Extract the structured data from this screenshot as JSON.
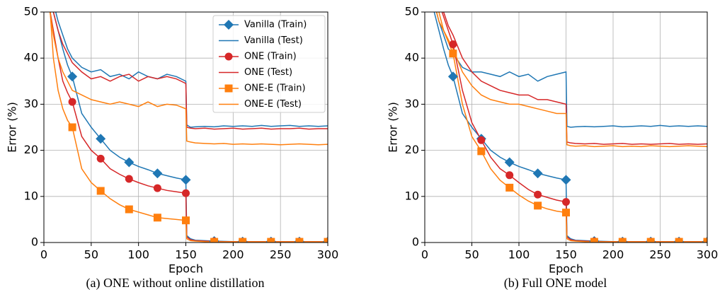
{
  "chart_data": [
    {
      "type": "line",
      "caption": "(a)  ONE without online distillation",
      "xlabel": "Epoch",
      "ylabel": "Error (%)",
      "xlim": [
        0,
        300
      ],
      "ylim": [
        0,
        50
      ],
      "xticks": [
        0,
        50,
        100,
        150,
        200,
        250,
        300
      ],
      "yticks": [
        0,
        10,
        20,
        30,
        40,
        50
      ],
      "grid": true,
      "legend": "upper right",
      "markevery": 30,
      "x": [
        5,
        10,
        15,
        20,
        25,
        30,
        40,
        50,
        60,
        70,
        80,
        90,
        100,
        110,
        120,
        130,
        140,
        150,
        151,
        155,
        160,
        170,
        180,
        190,
        200,
        210,
        220,
        230,
        240,
        250,
        260,
        270,
        280,
        290,
        300
      ],
      "series": [
        {
          "name": "Vanilla (Train)",
          "color": "#1f77b4",
          "marker": "D",
          "values": [
            55,
            50,
            46,
            42,
            38.5,
            36,
            28,
            25,
            22.5,
            20,
            18.5,
            17.4,
            16.5,
            15.8,
            15,
            14.5,
            14,
            13.6,
            1.5,
            0.8,
            0.5,
            0.4,
            0.3,
            0.25,
            0.2,
            0.2,
            0.2,
            0.2,
            0.2,
            0.2,
            0.2,
            0.2,
            0.2,
            0.2,
            0.2
          ]
        },
        {
          "name": "Vanilla (Test)",
          "color": "#1f77b4",
          "values": [
            55,
            52,
            48,
            45,
            42,
            40,
            38,
            37,
            37.5,
            36,
            36.5,
            35.5,
            37,
            36,
            35.5,
            36.5,
            36,
            35,
            25.5,
            25,
            25.1,
            25.2,
            25.1,
            25.3,
            25.2,
            25.3,
            25.2,
            25.4,
            25.2,
            25.3,
            25.4,
            25.2,
            25.3,
            25.2,
            25.3
          ]
        },
        {
          "name": "ONE (Train)",
          "color": "#d62728",
          "marker": "o",
          "values": [
            52,
            46,
            40,
            35,
            32.5,
            30.5,
            23,
            20,
            18.2,
            16,
            14.8,
            13.8,
            13,
            12.3,
            11.8,
            11.3,
            11,
            10.7,
            1.2,
            0.6,
            0.4,
            0.3,
            0.25,
            0.2,
            0.2,
            0.2,
            0.2,
            0.2,
            0.2,
            0.2,
            0.2,
            0.2,
            0.2,
            0.2,
            0.2
          ]
        },
        {
          "name": "ONE (Test)",
          "color": "#d62728",
          "values": [
            54,
            50,
            46,
            43,
            41,
            39,
            37,
            35.5,
            36,
            35,
            36,
            36.5,
            35,
            36,
            35.5,
            36,
            35.5,
            34.5,
            25,
            24.8,
            24.7,
            24.8,
            24.6,
            24.7,
            24.8,
            24.6,
            24.7,
            24.8,
            24.6,
            24.7,
            24.7,
            24.8,
            24.6,
            24.7,
            24.7
          ]
        },
        {
          "name": "ONE-E (Train)",
          "color": "#ff7f0e",
          "marker": "s",
          "values": [
            55,
            40,
            33,
            29,
            26.5,
            25,
            16,
            13,
            11.2,
            9.5,
            8.2,
            7.2,
            6.6,
            6,
            5.4,
            5.2,
            5,
            4.8,
            0.8,
            0.4,
            0.3,
            0.2,
            0.15,
            0.15,
            0.15,
            0.15,
            0.15,
            0.15,
            0.15,
            0.15,
            0.15,
            0.15,
            0.15,
            0.15,
            0.15
          ]
        },
        {
          "name": "ONE-E (Test)",
          "color": "#ff7f0e",
          "values": [
            52,
            45,
            40,
            37,
            35,
            33,
            32,
            31,
            30.5,
            30,
            30.5,
            30,
            29.5,
            30.5,
            29.5,
            30,
            29.8,
            29,
            22,
            21.8,
            21.6,
            21.5,
            21.4,
            21.5,
            21.3,
            21.4,
            21.3,
            21.4,
            21.3,
            21.2,
            21.3,
            21.4,
            21.3,
            21.2,
            21.3
          ]
        }
      ]
    },
    {
      "type": "line",
      "caption": "(b) Full ONE model",
      "xlabel": "Epoch",
      "ylabel": "Error (%)",
      "xlim": [
        0,
        300
      ],
      "ylim": [
        0,
        50
      ],
      "xticks": [
        0,
        50,
        100,
        150,
        200,
        250,
        300
      ],
      "yticks": [
        0,
        10,
        20,
        30,
        40,
        50
      ],
      "grid": true,
      "markevery": 30,
      "x": [
        5,
        10,
        15,
        20,
        25,
        30,
        40,
        50,
        60,
        70,
        80,
        90,
        100,
        110,
        120,
        130,
        140,
        150,
        151,
        155,
        160,
        170,
        180,
        190,
        200,
        210,
        220,
        230,
        240,
        250,
        260,
        270,
        280,
        290,
        300
      ],
      "series": [
        {
          "color": "#1f77b4",
          "marker": "D",
          "values": [
            55,
            50,
            46,
            42,
            38.5,
            36,
            28,
            25,
            22.5,
            20,
            18.5,
            17.4,
            16.5,
            15.8,
            15,
            14.5,
            14,
            13.6,
            1.5,
            0.8,
            0.5,
            0.4,
            0.3,
            0.25,
            0.2,
            0.2,
            0.2,
            0.2,
            0.2,
            0.2,
            0.2,
            0.2,
            0.2,
            0.2,
            0.2
          ]
        },
        {
          "color": "#1f77b4",
          "values": [
            55,
            52,
            48,
            45,
            42,
            41,
            38,
            37,
            37,
            36.5,
            36,
            37,
            36,
            36.5,
            35,
            36,
            36.5,
            37,
            25.2,
            25,
            25.1,
            25.2,
            25.1,
            25.2,
            25.3,
            25.1,
            25.2,
            25.3,
            25.2,
            25.4,
            25.2,
            25.3,
            25.2,
            25.3,
            25.2
          ]
        },
        {
          "color": "#d62728",
          "marker": "o",
          "values": [
            58,
            55,
            52,
            49,
            46,
            43,
            33,
            26,
            22.2,
            18.5,
            16,
            14.6,
            13,
            11.5,
            10.4,
            9.8,
            9.2,
            8.8,
            1.2,
            0.6,
            0.4,
            0.3,
            0.25,
            0.2,
            0.2,
            0.2,
            0.2,
            0.2,
            0.2,
            0.2,
            0.2,
            0.2,
            0.2,
            0.2,
            0.2
          ]
        },
        {
          "color": "#d62728",
          "values": [
            58,
            55,
            52,
            50,
            47,
            45,
            40,
            37,
            35,
            34,
            33,
            32.5,
            32,
            32,
            31,
            31,
            30.5,
            30,
            21.8,
            21.6,
            21.5,
            21.4,
            21.5,
            21.3,
            21.4,
            21.5,
            21.3,
            21.4,
            21.3,
            21.4,
            21.5,
            21.3,
            21.4,
            21.3,
            21.4
          ]
        },
        {
          "color": "#ff7f0e",
          "marker": "s",
          "values": [
            57,
            54,
            50,
            46,
            43.5,
            41,
            30,
            23,
            19.8,
            16,
            13.5,
            11.9,
            10.3,
            9,
            8,
            7.3,
            6.8,
            6.5,
            0.8,
            0.4,
            0.3,
            0.2,
            0.15,
            0.15,
            0.15,
            0.15,
            0.15,
            0.15,
            0.15,
            0.15,
            0.15,
            0.15,
            0.15,
            0.15,
            0.15
          ]
        },
        {
          "color": "#ff7f0e",
          "values": [
            56,
            52,
            48,
            46,
            44,
            42,
            37,
            34,
            32,
            31,
            30.5,
            30,
            30,
            29.5,
            29,
            28.5,
            28,
            28,
            21.2,
            21,
            20.9,
            21,
            20.8,
            20.9,
            21,
            20.8,
            20.9,
            20.8,
            21,
            20.9,
            20.8,
            20.9,
            21,
            20.9,
            20.8
          ]
        }
      ]
    }
  ]
}
